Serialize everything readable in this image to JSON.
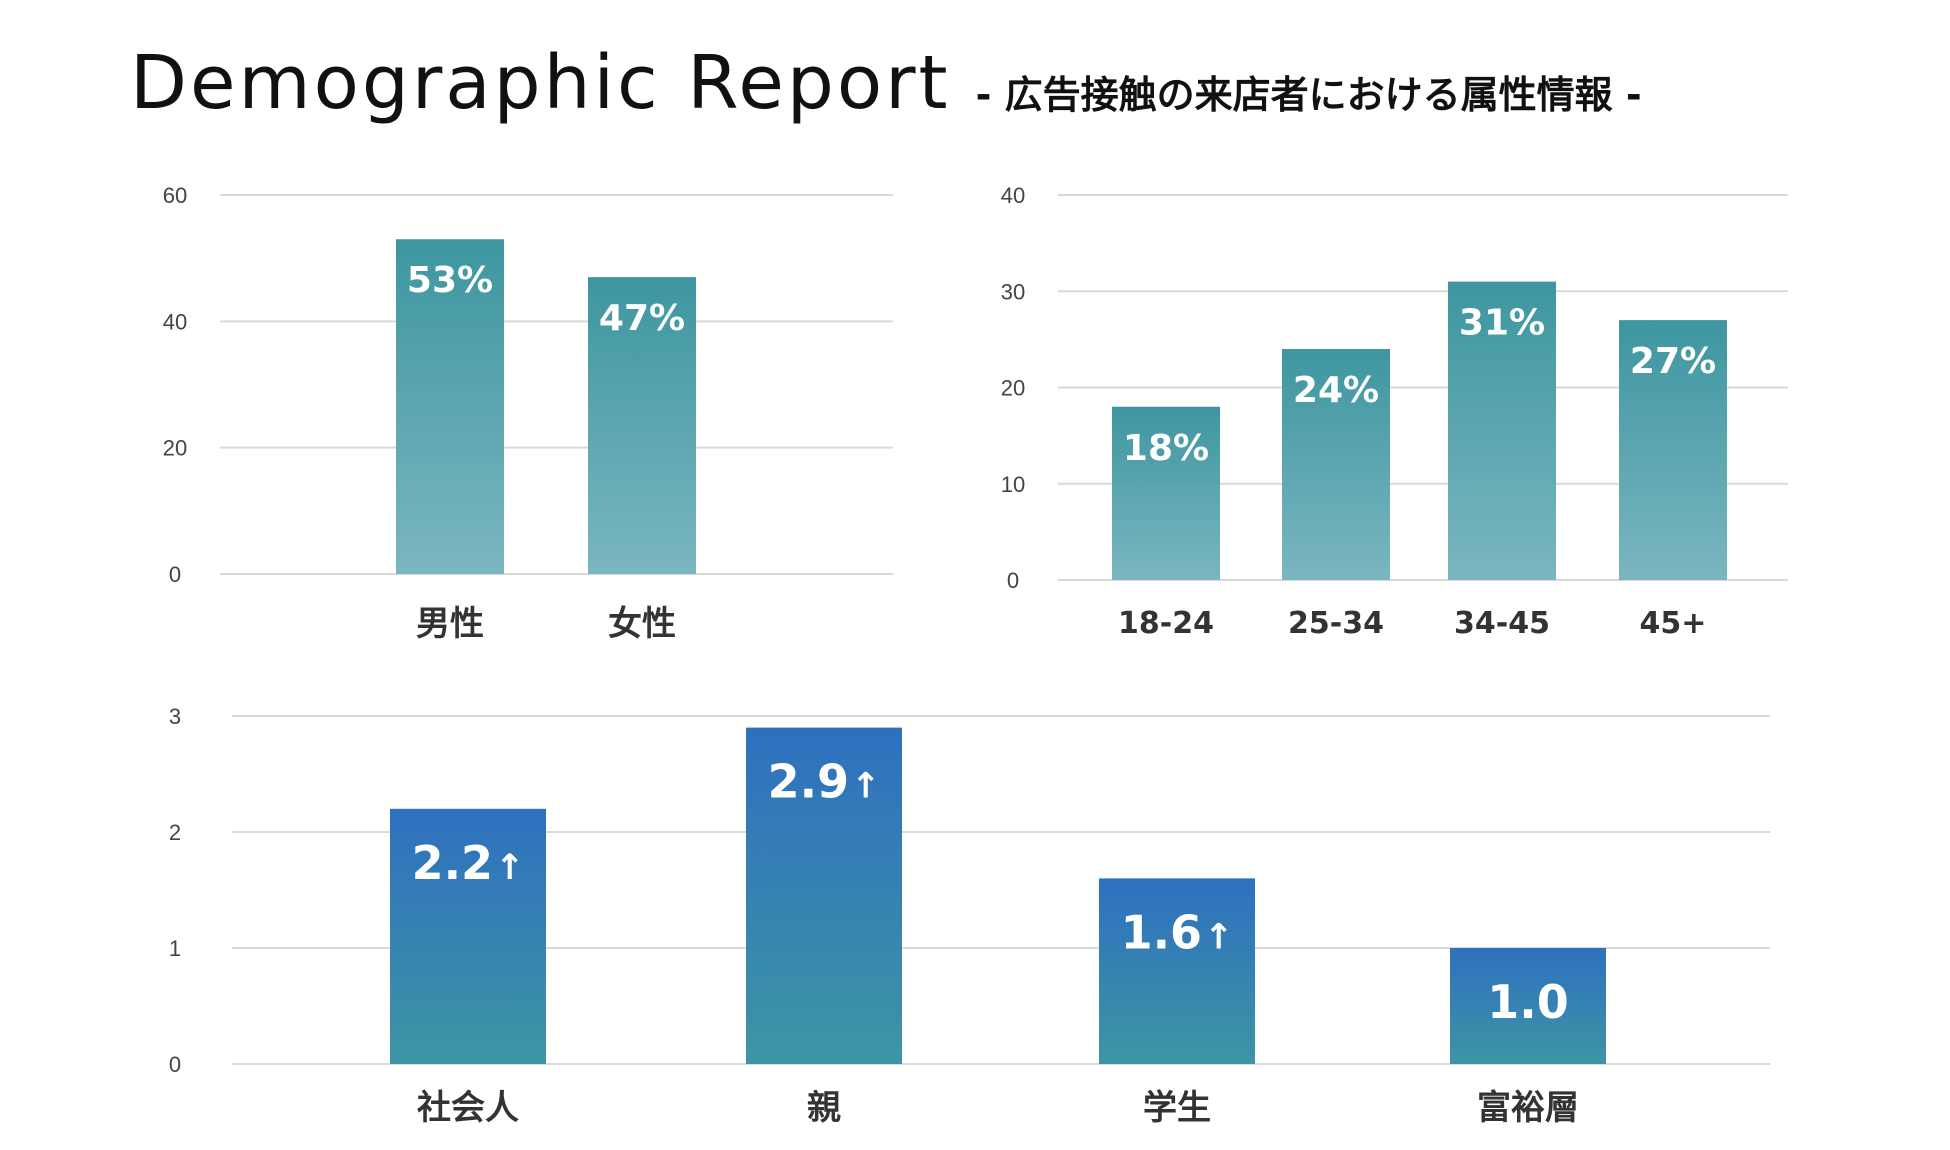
{
  "page": {
    "title": "Demographic Report",
    "subtitle": "- 広告接触の来店者における属性情報 -"
  },
  "chart_data": [
    {
      "type": "bar",
      "categories": [
        "男性",
        "女性"
      ],
      "values": [
        53,
        47
      ],
      "data_labels": [
        "53%",
        "47%"
      ],
      "ylim": [
        0,
        60
      ],
      "yticks": [
        0,
        20,
        40,
        60
      ],
      "grid": true,
      "colors": {
        "top": "#3e96a0",
        "bottom": "#7ab6c0"
      }
    },
    {
      "type": "bar",
      "categories": [
        "18-24",
        "25-34",
        "34-45",
        "45+"
      ],
      "values": [
        18,
        24,
        31,
        27
      ],
      "data_labels": [
        "18%",
        "24%",
        "31%",
        "27%"
      ],
      "ylim": [
        0,
        40
      ],
      "yticks": [
        0,
        10,
        20,
        30,
        40
      ],
      "grid": true,
      "colors": {
        "top": "#3e96a0",
        "bottom": "#7ab6c0"
      }
    },
    {
      "type": "bar",
      "categories": [
        "社会人",
        "親",
        "学生",
        "富裕層"
      ],
      "values": [
        2.2,
        2.9,
        1.6,
        1.0
      ],
      "data_labels": [
        "2.2",
        "2.9",
        "1.6",
        "1.0"
      ],
      "label_arrows": [
        true,
        true,
        true,
        false
      ],
      "ylim": [
        0,
        3
      ],
      "yticks": [
        0,
        1,
        2,
        3
      ],
      "grid": true,
      "colors": {
        "top": "#2e70bf",
        "bottom": "#3d95a4"
      }
    }
  ]
}
